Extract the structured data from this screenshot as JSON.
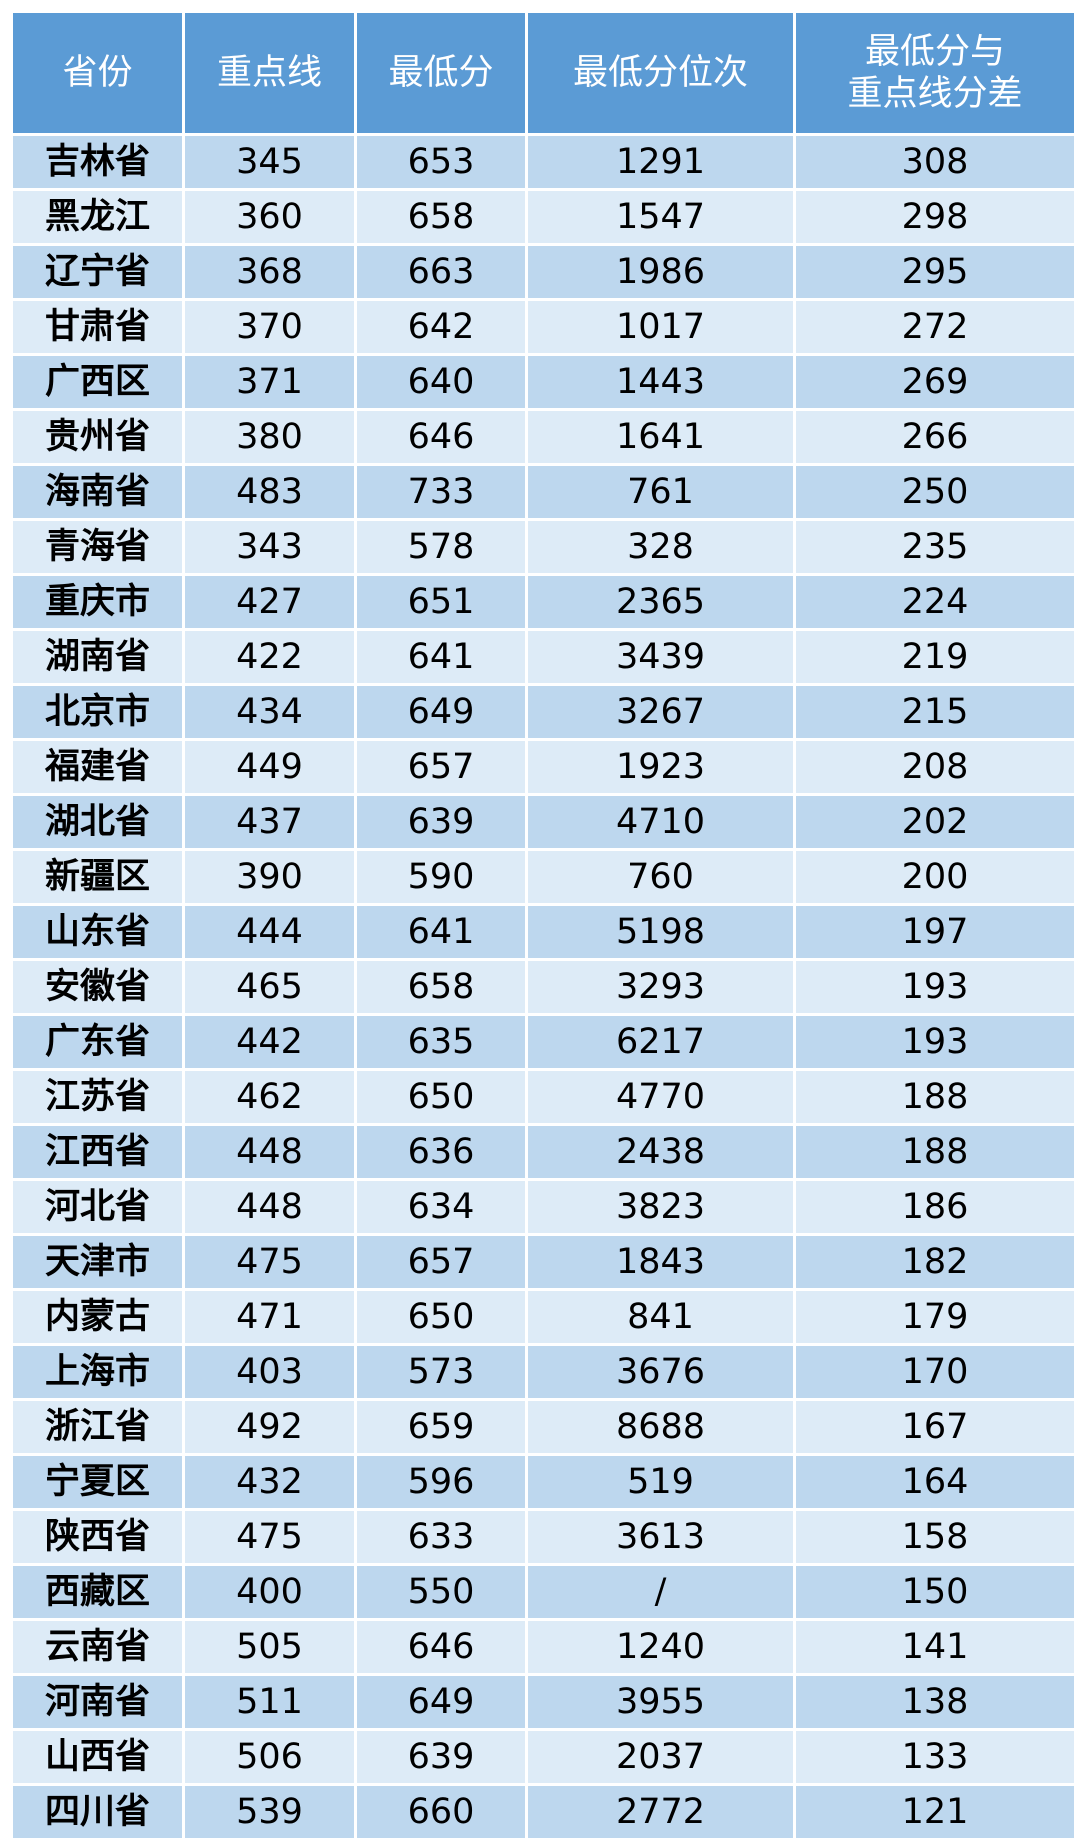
{
  "table": {
    "headers": [
      "省份",
      "重点线",
      "最低分",
      "最低分位次",
      "最低分与\n重点线分差"
    ],
    "header_color": "#5b9bd5",
    "row_colors": [
      "#bdd7ee",
      "#ddebf7"
    ],
    "rows": [
      [
        "吉林省",
        "345",
        "653",
        "1291",
        "308"
      ],
      [
        "黑龙江",
        "360",
        "658",
        "1547",
        "298"
      ],
      [
        "辽宁省",
        "368",
        "663",
        "1986",
        "295"
      ],
      [
        "甘肃省",
        "370",
        "642",
        "1017",
        "272"
      ],
      [
        "广西区",
        "371",
        "640",
        "1443",
        "269"
      ],
      [
        "贵州省",
        "380",
        "646",
        "1641",
        "266"
      ],
      [
        "海南省",
        "483",
        "733",
        "761",
        "250"
      ],
      [
        "青海省",
        "343",
        "578",
        "328",
        "235"
      ],
      [
        "重庆市",
        "427",
        "651",
        "2365",
        "224"
      ],
      [
        "湖南省",
        "422",
        "641",
        "3439",
        "219"
      ],
      [
        "北京市",
        "434",
        "649",
        "3267",
        "215"
      ],
      [
        "福建省",
        "449",
        "657",
        "1923",
        "208"
      ],
      [
        "湖北省",
        "437",
        "639",
        "4710",
        "202"
      ],
      [
        "新疆区",
        "390",
        "590",
        "760",
        "200"
      ],
      [
        "山东省",
        "444",
        "641",
        "5198",
        "197"
      ],
      [
        "安徽省",
        "465",
        "658",
        "3293",
        "193"
      ],
      [
        "广东省",
        "442",
        "635",
        "6217",
        "193"
      ],
      [
        "江苏省",
        "462",
        "650",
        "4770",
        "188"
      ],
      [
        "江西省",
        "448",
        "636",
        "2438",
        "188"
      ],
      [
        "河北省",
        "448",
        "634",
        "3823",
        "186"
      ],
      [
        "天津市",
        "475",
        "657",
        "1843",
        "182"
      ],
      [
        "内蒙古",
        "471",
        "650",
        "841",
        "179"
      ],
      [
        "上海市",
        "403",
        "573",
        "3676",
        "170"
      ],
      [
        "浙江省",
        "492",
        "659",
        "8688",
        "167"
      ],
      [
        "宁夏区",
        "432",
        "596",
        "519",
        "164"
      ],
      [
        "陕西省",
        "475",
        "633",
        "3613",
        "158"
      ],
      [
        "西藏区",
        "400",
        "550",
        "/",
        "150"
      ],
      [
        "云南省",
        "505",
        "646",
        "1240",
        "141"
      ],
      [
        "河南省",
        "511",
        "649",
        "3955",
        "138"
      ],
      [
        "山西省",
        "506",
        "639",
        "2037",
        "133"
      ],
      [
        "四川省",
        "539",
        "660",
        "2772",
        "121"
      ]
    ]
  }
}
